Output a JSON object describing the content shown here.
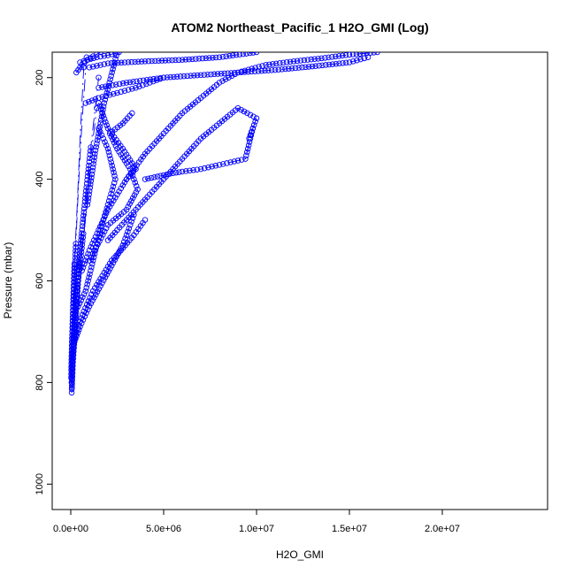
{
  "chart_data": {
    "type": "scatter",
    "title": "ATOM2 Northeast_Pacific_1 H2O_GMI (Log)",
    "xlabel": "H2O_GMI",
    "ylabel": "Pressure (mbar)",
    "xlim": [
      0,
      24000000
    ],
    "ylim": [
      1050,
      150
    ],
    "y_inverted": true,
    "x_ticks": [
      0,
      5000000,
      10000000,
      15000000,
      20000000
    ],
    "x_tick_labels": [
      "0.0e+00",
      "5.0e+06",
      "1.0e+07",
      "1.5e+07",
      "2.0e+07"
    ],
    "y_ticks": [
      200,
      400,
      600,
      800,
      1000
    ],
    "y_tick_labels": [
      "200",
      "400",
      "600",
      "800",
      "1000"
    ],
    "marker": "open-circle",
    "color": "#0000ff",
    "grid": false,
    "legend": "none",
    "series": [
      {
        "x": [
          50000,
          80000,
          150000,
          300000,
          500000,
          900000,
          1300000,
          1800000,
          2500000
        ],
        "y": [
          820,
          780,
          720,
          640,
          560,
          450,
          350,
          250,
          150
        ]
      },
      {
        "x": [
          60000,
          120000,
          250000,
          400000,
          700000,
          1000000,
          1400000
        ],
        "y": [
          810,
          760,
          690,
          600,
          500,
          380,
          260
        ]
      },
      {
        "x": [
          40000,
          100000,
          200000,
          350000,
          550000,
          800000,
          1100000,
          1500000
        ],
        "y": [
          800,
          740,
          680,
          600,
          520,
          430,
          330,
          200
        ]
      },
      {
        "x": [
          100000,
          300000,
          700000,
          1200000,
          1700000,
          2200000,
          2700000,
          3400000,
          4000000
        ],
        "y": [
          740,
          700,
          660,
          620,
          590,
          560,
          540,
          510,
          480
        ]
      },
      {
        "x": [
          200000,
          500000,
          1000000,
          1600000,
          2200000,
          2800000,
          3400000
        ],
        "y": [
          720,
          690,
          650,
          610,
          570,
          530,
          470
        ]
      },
      {
        "x": [
          400000,
          800000,
          1200000,
          1600000,
          2000000,
          2400000,
          2000000,
          1500000
        ],
        "y": [
          650,
          620,
          560,
          500,
          450,
          400,
          340,
          300
        ]
      },
      {
        "x": [
          600000,
          1000000,
          1500000,
          2000000,
          2500000,
          3000000,
          3500000,
          2800000,
          2000000,
          1500000
        ],
        "y": [
          580,
          540,
          500,
          460,
          430,
          400,
          380,
          340,
          300,
          250
        ]
      },
      {
        "x": [
          1000000,
          2000000,
          3000000,
          3600000,
          3200000,
          2500000,
          2100000,
          2800000,
          3300000
        ],
        "y": [
          560,
          490,
          460,
          420,
          380,
          340,
          310,
          290,
          270
        ]
      },
      {
        "x": [
          2000000,
          3000000,
          4000000,
          5000000,
          6000000,
          7000000,
          8000000,
          9000000,
          10000000,
          9600000,
          9800000,
          9400000,
          8200000,
          7000000,
          6000000,
          5500000,
          5000000,
          4500000,
          4000000
        ],
        "y": [
          520,
          480,
          440,
          400,
          360,
          320,
          290,
          260,
          280,
          320,
          300,
          360,
          370,
          380,
          385,
          388,
          392,
          396,
          400
        ]
      },
      {
        "x": [
          3000000,
          4000000,
          5000000,
          6000000,
          7000000,
          8000000,
          9000000,
          10500000,
          12000000,
          13500000,
          15000000,
          16500000
        ],
        "y": [
          400,
          350,
          310,
          270,
          240,
          210,
          190,
          175,
          168,
          162,
          155,
          150
        ]
      },
      {
        "x": [
          1500000,
          3000000,
          5000000,
          7000000,
          9000000,
          11000000,
          13000000,
          15000000,
          16000000
        ],
        "y": [
          220,
          210,
          200,
          195,
          190,
          185,
          178,
          170,
          160
        ]
      },
      {
        "x": [
          1000000,
          2000000,
          4000000,
          6000000,
          8000000,
          10000000
        ],
        "y": [
          180,
          172,
          168,
          165,
          160,
          150
        ]
      },
      {
        "x": [
          800000,
          1500000,
          2500000,
          3500000,
          5000000
        ],
        "y": [
          250,
          240,
          230,
          220,
          200
        ]
      },
      {
        "x": [
          500000,
          900000,
          1400000,
          2000000,
          2600000
        ],
        "y": [
          170,
          165,
          160,
          156,
          150
        ]
      },
      {
        "x": [
          300000,
          600000,
          900000,
          1200000,
          1600000
        ],
        "y": [
          190,
          175,
          165,
          158,
          150
        ]
      },
      {
        "x": [
          20000,
          60000,
          120000,
          200000,
          350000,
          500000,
          700000
        ],
        "y": [
          790,
          720,
          650,
          560,
          450,
          320,
          180
        ]
      },
      {
        "x": [
          30000,
          90000,
          180000,
          280000,
          420000,
          600000,
          850000
        ],
        "y": [
          770,
          700,
          610,
          520,
          410,
          290,
          160
        ]
      }
    ]
  }
}
